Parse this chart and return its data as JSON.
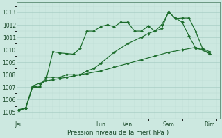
{
  "xlabel": "Pression niveau de la mer( hPa )",
  "bg_color": "#cce8e0",
  "plot_bg_color": "#cce8e0",
  "grid_color_minor": "#b8d8d0",
  "grid_color_major": "#a0c8be",
  "line_color": "#1a6b2a",
  "vline_color": "#5a8a72",
  "ylim": [
    1004.5,
    1013.8
  ],
  "yticks": [
    1005,
    1006,
    1007,
    1008,
    1009,
    1010,
    1011,
    1012,
    1013
  ],
  "day_labels": [
    "Jeu",
    "",
    "Lun",
    "Ven",
    "",
    "Sam",
    "",
    "Dim"
  ],
  "day_positions": [
    0,
    6,
    12,
    16,
    19,
    22,
    25,
    28
  ],
  "vline_positions": [
    12,
    16,
    22,
    28
  ],
  "xlim": [
    -0.3,
    29.5
  ],
  "series1_x": [
    0,
    1,
    2,
    3,
    4,
    5,
    6,
    7,
    8,
    9,
    10,
    11,
    12,
    13,
    14,
    15,
    16,
    17,
    18,
    19,
    20,
    21,
    22,
    23,
    24,
    25,
    26,
    27,
    28
  ],
  "series1_y": [
    1005.15,
    1005.3,
    1007.0,
    1007.1,
    1007.6,
    1009.85,
    1009.75,
    1009.7,
    1009.65,
    1010.1,
    1011.5,
    1011.5,
    1011.85,
    1012.0,
    1011.85,
    1012.2,
    1012.2,
    1011.5,
    1011.5,
    1011.9,
    1011.5,
    1012.0,
    1013.0,
    1012.55,
    1012.2,
    1011.1,
    1010.1,
    1010.05,
    1009.7
  ],
  "series2_x": [
    0,
    1,
    2,
    3,
    4,
    5,
    6,
    7,
    8,
    9,
    10,
    11,
    12,
    14,
    16,
    18,
    19,
    20,
    21,
    22,
    23,
    24,
    25,
    26,
    27,
    28
  ],
  "series2_y": [
    1005.2,
    1005.3,
    1007.0,
    1007.0,
    1007.8,
    1007.8,
    1007.8,
    1008.0,
    1008.0,
    1008.0,
    1008.3,
    1008.5,
    1008.9,
    1009.8,
    1010.5,
    1011.0,
    1011.3,
    1011.5,
    1011.7,
    1013.05,
    1012.5,
    1012.55,
    1012.55,
    1011.45,
    1010.1,
    1009.85
  ],
  "series3_x": [
    0,
    1,
    2,
    3,
    4,
    5,
    6,
    7,
    8,
    9,
    10,
    12,
    14,
    16,
    18,
    20,
    22,
    24,
    26,
    28
  ],
  "series3_y": [
    1005.2,
    1005.35,
    1007.1,
    1007.3,
    1007.5,
    1007.6,
    1007.7,
    1007.8,
    1007.9,
    1008.0,
    1008.1,
    1008.3,
    1008.6,
    1008.9,
    1009.2,
    1009.5,
    1009.8,
    1010.0,
    1010.2,
    1009.7
  ]
}
